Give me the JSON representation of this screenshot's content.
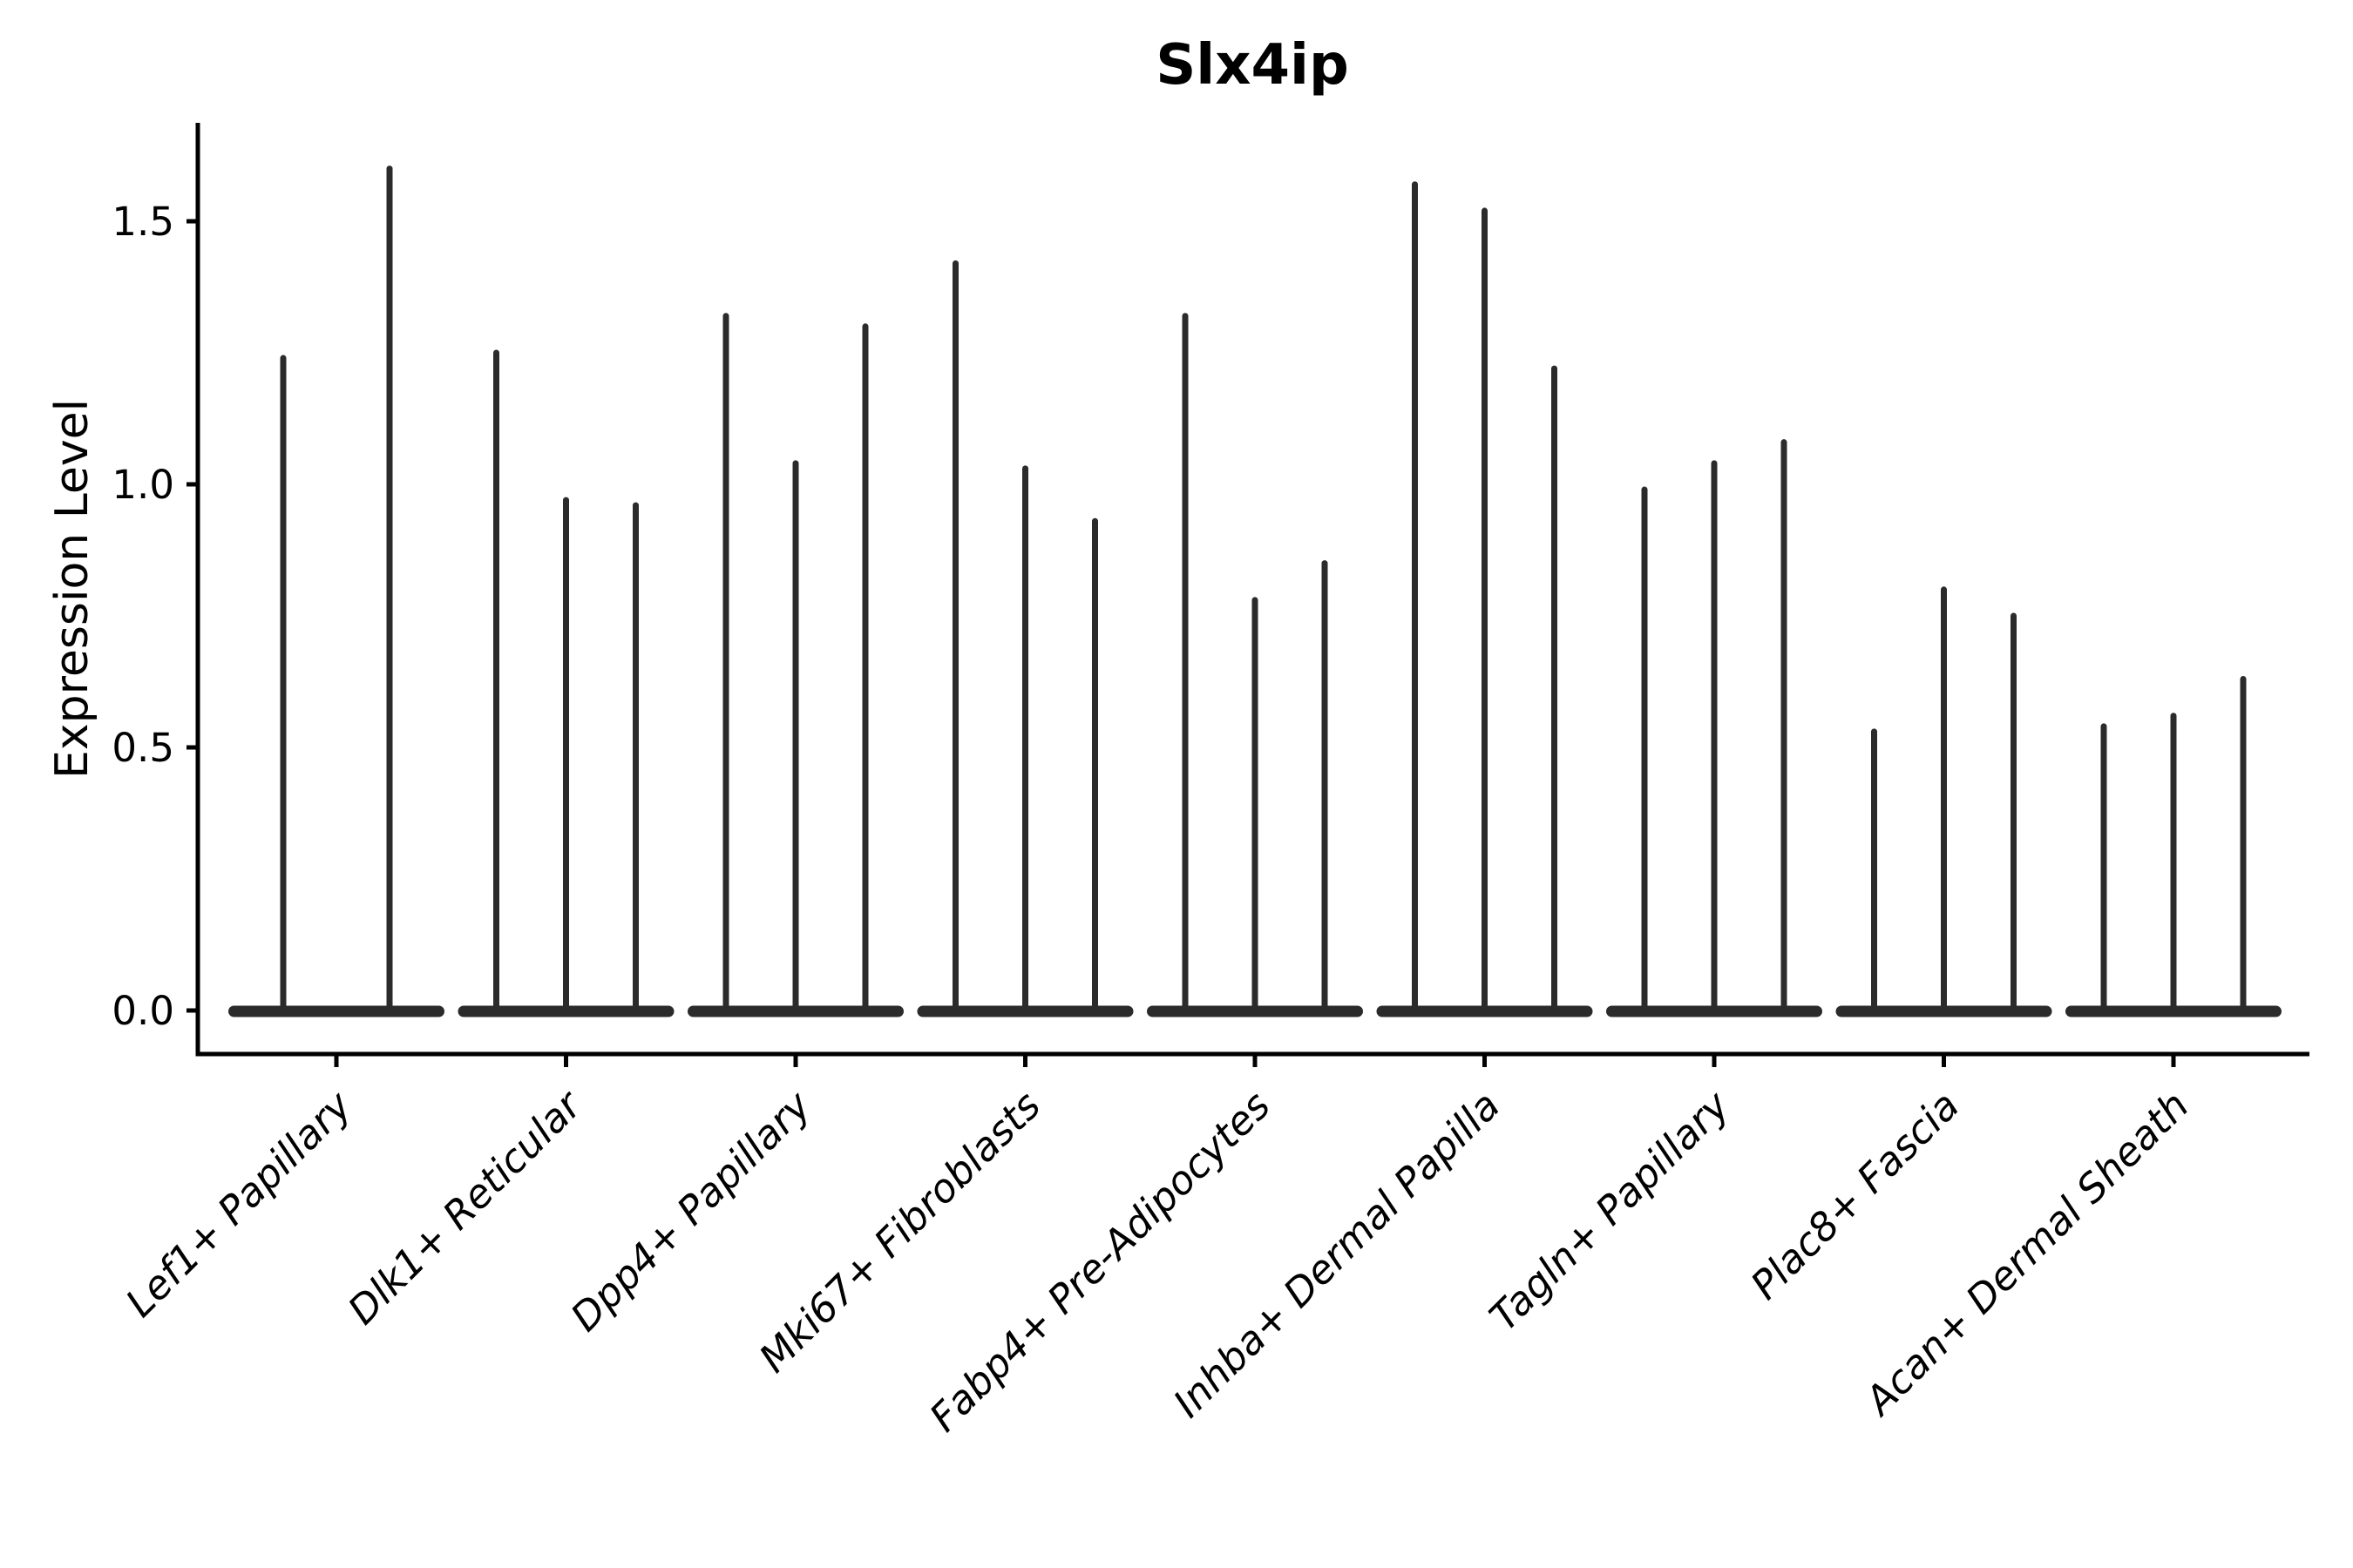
{
  "figure": {
    "title": "Slx4ip",
    "background_color": "#ffffff"
  },
  "chart_data": {
    "type": "violin",
    "title": "Slx4ip",
    "xlabel": "",
    "ylabel": "Expression Level",
    "grid": false,
    "legend": "none",
    "ylim": [
      -0.08,
      1.69
    ],
    "ytick_values": [
      0.0,
      0.5,
      1.0,
      1.5
    ],
    "ytick_labels": [
      "0.0",
      "0.5",
      "1.0",
      "1.5"
    ],
    "xtick_label_rotation_deg": 45,
    "xtick_label_style": "italic",
    "violin_color": "#2b2b2b",
    "axis_color": "#000000",
    "categories": [
      "Lef1+ Papillary",
      "Dlk1+ Reticular",
      "Dpp4+ Papillary",
      "Mki67+ Fibroblasts",
      "Fabp4+ Pre-Adipocytes",
      "Inhba+ Dermal Papilla",
      "Tagln+ Papillary",
      "Plac8+ Fascia",
      "Acan+ Dermal Sheath"
    ],
    "groups": [
      {
        "category": "Lef1+ Papillary",
        "violin_peak_values": [
          1.24,
          1.6
        ]
      },
      {
        "category": "Dlk1+ Reticular",
        "violin_peak_values": [
          1.25,
          0.97,
          0.96
        ]
      },
      {
        "category": "Dpp4+ Papillary",
        "violin_peak_values": [
          1.32,
          1.04,
          1.3
        ]
      },
      {
        "category": "Mki67+ Fibroblasts",
        "violin_peak_values": [
          1.42,
          1.03,
          0.93
        ]
      },
      {
        "category": "Fabp4+ Pre-Adipocytes",
        "violin_peak_values": [
          1.32,
          0.78,
          0.85
        ]
      },
      {
        "category": "Inhba+ Dermal Papilla",
        "violin_peak_values": [
          1.57,
          1.52,
          1.22
        ]
      },
      {
        "category": "Tagln+ Papillary",
        "violin_peak_values": [
          0.99,
          1.04,
          1.08
        ]
      },
      {
        "category": "Plac8+ Fascia",
        "violin_peak_values": [
          0.53,
          0.8,
          0.75
        ]
      },
      {
        "category": "Acan+ Dermal Sheath",
        "violin_peak_values": [
          0.54,
          0.56,
          0.63
        ]
      }
    ],
    "description": "Violin plot of Slx4ip expression level per fibroblast cluster; each category shows 2-3 extremely thin violins (spikes) with flat bases at zero expression."
  }
}
